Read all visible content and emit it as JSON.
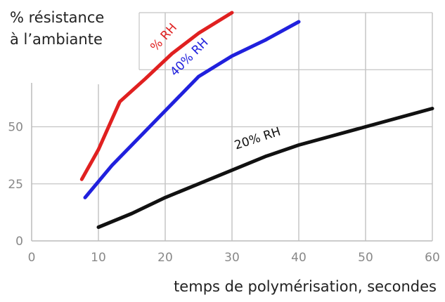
{
  "chart_data": {
    "type": "line",
    "ylabel_lines": [
      "% résistance",
      "à l’ambiante"
    ],
    "xlabel": "temps de polymérisation, secondes",
    "xlim": [
      0,
      60
    ],
    "ylim": [
      0,
      100
    ],
    "x_ticks": [
      "0",
      "10",
      "20",
      "30",
      "40",
      "50",
      "60"
    ],
    "y_ticks": [
      "0",
      "25",
      "50"
    ],
    "grid": true,
    "series": [
      {
        "name": "% RH",
        "color": "#e02020",
        "points": [
          [
            7.5,
            27
          ],
          [
            10,
            40
          ],
          [
            13.2,
            61
          ],
          [
            17,
            71
          ],
          [
            21,
            82
          ],
          [
            25,
            91
          ],
          [
            30,
            100
          ]
        ]
      },
      {
        "name": "40% RH",
        "color": "#2020dd",
        "points": [
          [
            8,
            19
          ],
          [
            12,
            33
          ],
          [
            16,
            45
          ],
          [
            20,
            57
          ],
          [
            25,
            72
          ],
          [
            30,
            81
          ],
          [
            35,
            88
          ],
          [
            40,
            96
          ]
        ]
      },
      {
        "name": "20% RH",
        "color": "#111111",
        "points": [
          [
            10,
            6
          ],
          [
            15,
            12
          ],
          [
            20,
            19
          ],
          [
            25,
            25
          ],
          [
            30,
            31
          ],
          [
            35,
            37
          ],
          [
            40,
            42
          ],
          [
            45,
            46
          ],
          [
            50,
            50
          ],
          [
            55,
            54
          ],
          [
            60,
            58
          ]
        ]
      }
    ]
  }
}
